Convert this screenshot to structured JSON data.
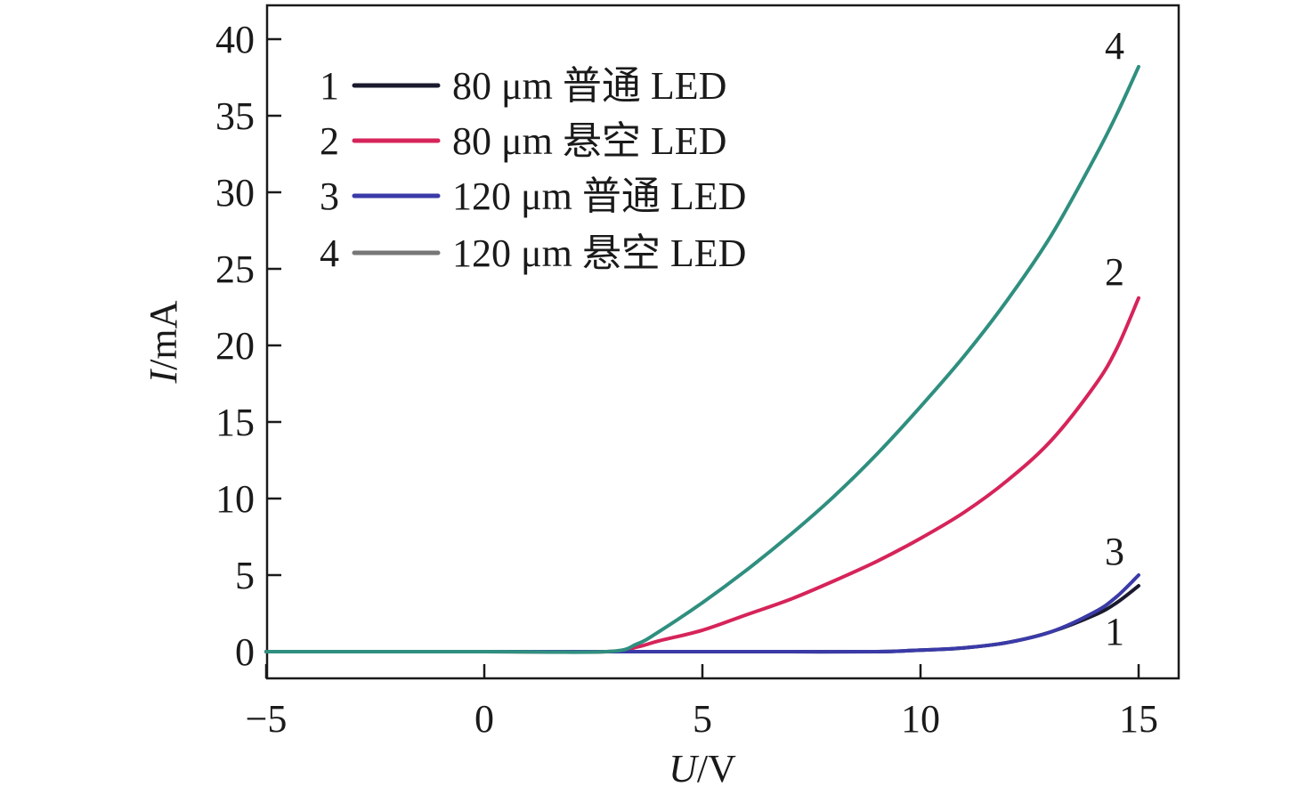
{
  "chart_data": {
    "type": "line",
    "xlabel": {
      "var": "U",
      "unit": "/V"
    },
    "ylabel": {
      "var": "I",
      "unit": "/mA"
    },
    "xlim": [
      -5,
      15
    ],
    "ylim": [
      -1.5,
      42
    ],
    "xticks": [
      -5,
      0,
      5,
      10,
      15
    ],
    "xtick_labels": [
      "−5",
      "0",
      "5",
      "10",
      "15"
    ],
    "yticks": [
      0,
      5,
      10,
      15,
      20,
      25,
      30,
      35,
      40
    ],
    "ytick_labels": [
      "0",
      "5",
      "10",
      "15",
      "20",
      "25",
      "30",
      "35",
      "40"
    ],
    "grid": false,
    "legend_position": "top-left",
    "series": [
      {
        "id": "1",
        "name": "80 μm 普通 LED",
        "color": "#1a1a2e",
        "end_label": "1",
        "points": [
          [
            -5,
            0
          ],
          [
            0,
            0
          ],
          [
            3,
            0
          ],
          [
            5,
            0
          ],
          [
            7,
            0
          ],
          [
            9,
            0
          ],
          [
            10,
            0.1
          ],
          [
            11,
            0.25
          ],
          [
            12,
            0.6
          ],
          [
            13,
            1.3
          ],
          [
            14,
            2.4
          ],
          [
            14.5,
            3.2
          ],
          [
            15,
            4.3
          ]
        ]
      },
      {
        "id": "2",
        "name": "80 μm 悬空 LED",
        "color": "#d6245a",
        "end_label": "2",
        "points": [
          [
            -5,
            0
          ],
          [
            0,
            0
          ],
          [
            2.8,
            0
          ],
          [
            3.5,
            0.3
          ],
          [
            4,
            0.7
          ],
          [
            5,
            1.4
          ],
          [
            6,
            2.4
          ],
          [
            7,
            3.4
          ],
          [
            8,
            4.6
          ],
          [
            9,
            5.9
          ],
          [
            10,
            7.4
          ],
          [
            11,
            9.1
          ],
          [
            12,
            11.2
          ],
          [
            13,
            13.8
          ],
          [
            14,
            17.4
          ],
          [
            14.5,
            19.8
          ],
          [
            15,
            23.1
          ]
        ]
      },
      {
        "id": "3",
        "name": "120 μm 普通 LED",
        "color": "#3a3aa8",
        "end_label": "3",
        "points": [
          [
            -5,
            0
          ],
          [
            0,
            0
          ],
          [
            3,
            0
          ],
          [
            5,
            0
          ],
          [
            7,
            0
          ],
          [
            9,
            0
          ],
          [
            10,
            0.1
          ],
          [
            11,
            0.25
          ],
          [
            12,
            0.6
          ],
          [
            13,
            1.3
          ],
          [
            14,
            2.6
          ],
          [
            14.5,
            3.6
          ],
          [
            15,
            5.0
          ]
        ]
      },
      {
        "id": "4",
        "name": "120 μm 悬空 LED",
        "color": "#2f8f7f",
        "legend_color": "#777777",
        "end_label": "4",
        "points": [
          [
            -5,
            0
          ],
          [
            0,
            0
          ],
          [
            2.8,
            0
          ],
          [
            3.5,
            0.5
          ],
          [
            4,
            1.3
          ],
          [
            5,
            3.2
          ],
          [
            6,
            5.3
          ],
          [
            7,
            7.6
          ],
          [
            8,
            10.1
          ],
          [
            9,
            12.9
          ],
          [
            10,
            16.0
          ],
          [
            11,
            19.3
          ],
          [
            12,
            23.0
          ],
          [
            13,
            27.2
          ],
          [
            14,
            32.3
          ],
          [
            14.5,
            35.1
          ],
          [
            15,
            38.2
          ]
        ]
      }
    ]
  }
}
